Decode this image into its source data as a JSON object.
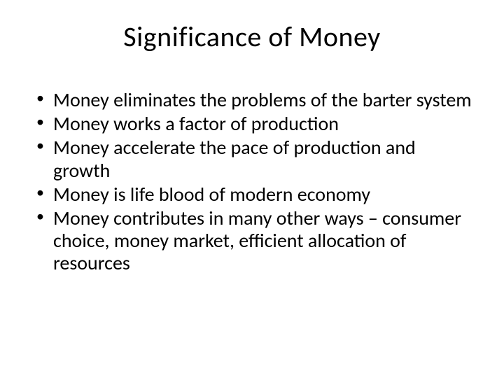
{
  "slide": {
    "title": "Significance of Money",
    "bullets": [
      "Money eliminates the problems of the barter system",
      "Money works a factor of production",
      "Money accelerate the pace of production and growth",
      "Money is life blood of modern economy",
      "Money contributes in many other ways – consumer choice, money market, efficient allocation of resources"
    ],
    "title_fontsize": 40,
    "bullet_fontsize": 28,
    "background_color": "#ffffff",
    "text_color": "#000000",
    "font_family": "Calibri"
  }
}
